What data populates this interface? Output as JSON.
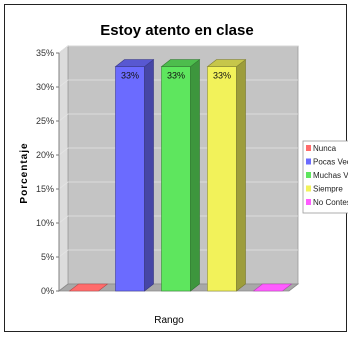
{
  "chart_data": {
    "type": "bar",
    "title": "Estoy atento en clase",
    "xlabel": "Rango",
    "ylabel": "Porcentaje",
    "categories": [
      "Nunca",
      "Pocas Veces",
      "Muchas Veces",
      "Siempre",
      "No Contestó"
    ],
    "values": [
      0,
      33,
      33,
      33,
      0
    ],
    "data_labels": [
      "",
      "33%",
      "33%",
      "33%",
      ""
    ],
    "colors": [
      "#ff6b6b",
      "#6b6bff",
      "#5ee65e",
      "#f2f25a",
      "#ff5cff"
    ],
    "yticks": [
      "0%",
      "5%",
      "10%",
      "15%",
      "20%",
      "25%",
      "30%",
      "35%"
    ],
    "ylim": [
      0,
      35
    ],
    "grid": true,
    "legend": "right",
    "series": [
      {
        "name": "Nunca",
        "value": 0
      },
      {
        "name": "Pocas Veces",
        "value": 33
      },
      {
        "name": "Muchas Veces",
        "value": 33
      },
      {
        "name": "Siempre",
        "value": 33
      },
      {
        "name": "No Contestó",
        "value": 0
      }
    ]
  }
}
